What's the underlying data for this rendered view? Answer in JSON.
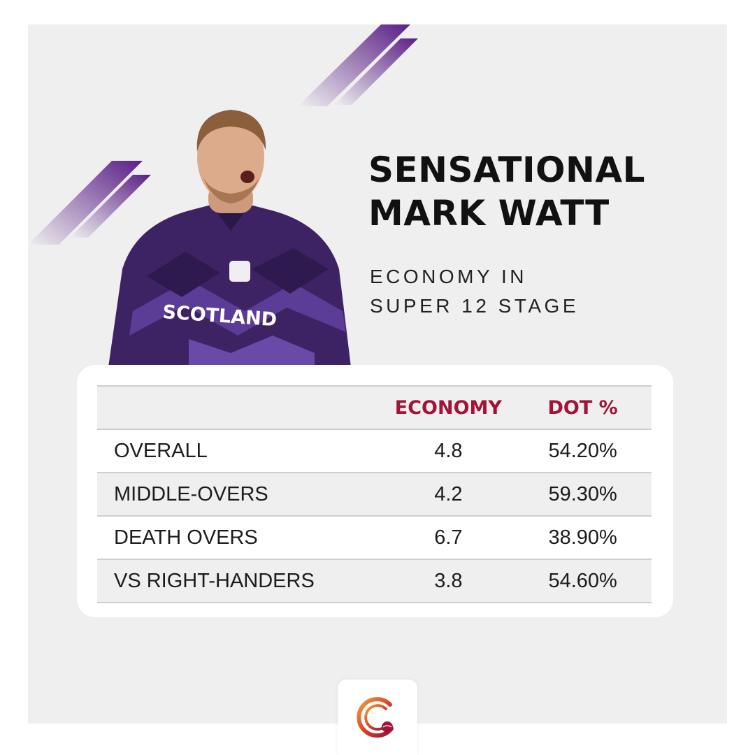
{
  "headline": {
    "line1": "SENSATIONAL",
    "line2": "MARK WATT"
  },
  "subheadline": {
    "line1": "ECONOMY IN",
    "line2": "SUPER 12 STAGE"
  },
  "player": {
    "shirt_text": "SCOTLAND"
  },
  "table": {
    "headers": [
      "",
      "ECONOMY",
      "DOT %"
    ],
    "rows": [
      {
        "label": "OVERALL",
        "economy": "4.8",
        "dot": "54.20%"
      },
      {
        "label": "MIDDLE-OVERS",
        "economy": "4.2",
        "dot": "59.30%"
      },
      {
        "label": "DEATH OVERS",
        "economy": "6.7",
        "dot": "38.90%"
      },
      {
        "label": "VS RIGHT-HANDERS",
        "economy": "3.8",
        "dot": "54.60%"
      }
    ]
  },
  "colors": {
    "accent": "#a31238",
    "purple": "#5a2a86",
    "background": "#efefef",
    "card": "#ffffff"
  },
  "icons": [
    "decorative-stripes",
    "player-photo",
    "brand-logo-icon"
  ]
}
